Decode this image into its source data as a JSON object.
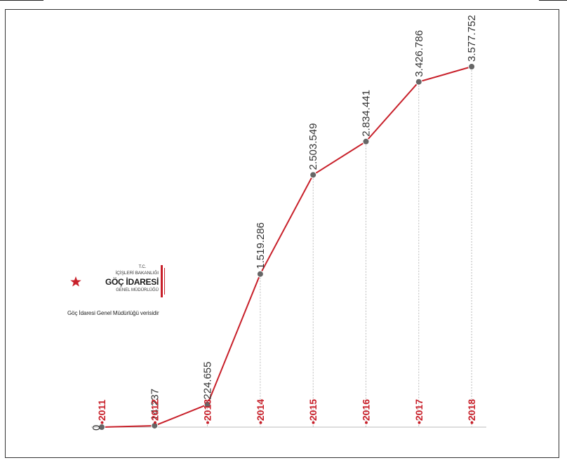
{
  "logo": {
    "tc": "T.C.",
    "line1": "İÇİŞLERİ BAKANLIĞI",
    "line2": "GÖÇ İDARESİ",
    "line3": "GENEL MÜDÜRLÜĞÜ",
    "note": "Göç İdaresi Genel Müdürlüğü verisidir"
  },
  "colors": {
    "line": "#c8202a",
    "year_label": "#c8202a",
    "value_label": "#333333",
    "marker": "#666666"
  },
  "chart_data": {
    "type": "line",
    "title": "",
    "xlabel": "",
    "ylabel": "",
    "categories": [
      "2011",
      "2012",
      "2013",
      "2014",
      "2015",
      "2016",
      "2017",
      "2018"
    ],
    "values": [
      0,
      14237,
      224655,
      1519286,
      2503549,
      2834441,
      3426786,
      3577752
    ],
    "value_labels": [
      "0",
      "14.237",
      "224.655",
      "1.519.286",
      "2.503.549",
      "2.834.441",
      "3.426.786",
      "3.577.752"
    ],
    "ylim": [
      0,
      3700000
    ],
    "grid": false,
    "legend": "none"
  }
}
